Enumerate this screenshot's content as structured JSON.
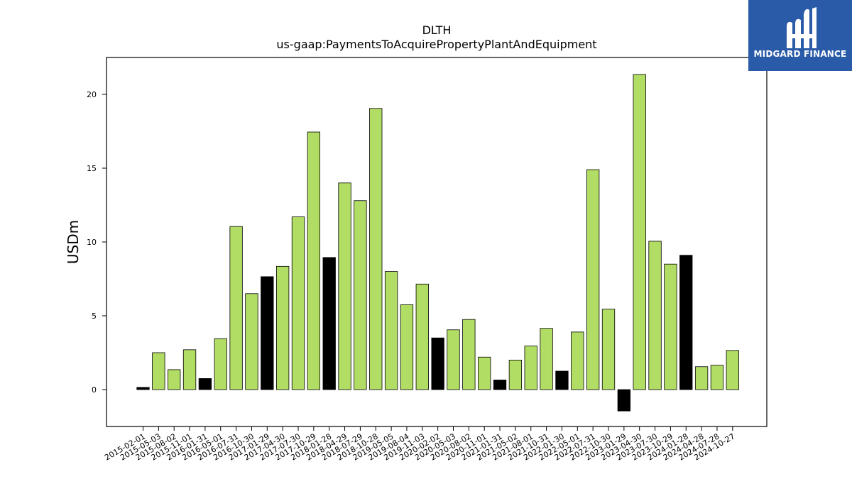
{
  "chart_data": {
    "type": "bar",
    "title": "DLTH",
    "subtitle": "us-gaap:PaymentsToAcquirePropertyPlantAndEquipment",
    "xlabel": "",
    "ylabel": "USDm",
    "ylim": [
      -2.5,
      22.5
    ],
    "yticks": [
      0,
      5,
      10,
      15,
      20
    ],
    "grid": false,
    "categories": [
      "2015-02-01",
      "2015-05-03",
      "2015-08-02",
      "2015-11-01",
      "2016-01-31",
      "2016-05-01",
      "2016-07-31",
      "2016-10-30",
      "2017-01-29",
      "2017-04-30",
      "2017-07-30",
      "2017-10-29",
      "2018-01-28",
      "2018-04-29",
      "2018-07-29",
      "2018-10-28",
      "2019-05-05",
      "2019-08-04",
      "2019-11-03",
      "2020-02-02",
      "2020-05-03",
      "2020-08-02",
      "2020-11-01",
      "2021-01-31",
      "2021-05-02",
      "2021-08-01",
      "2021-10-31",
      "2022-01-30",
      "2022-05-01",
      "2022-07-31",
      "2022-10-30",
      "2023-01-29",
      "2023-04-30",
      "2023-07-30",
      "2023-10-29",
      "2024-01-28",
      "2024-04-28",
      "2024-07-28",
      "2024-10-27"
    ],
    "values": [
      0.15,
      2.5,
      1.35,
      2.7,
      0.75,
      3.45,
      11.05,
      6.5,
      7.65,
      8.35,
      11.7,
      17.45,
      8.95,
      14.0,
      12.8,
      19.05,
      8.0,
      5.75,
      7.15,
      3.5,
      4.05,
      4.75,
      2.2,
      0.65,
      2.0,
      2.95,
      4.15,
      1.25,
      3.9,
      14.9,
      5.45,
      -1.45,
      21.35,
      10.05,
      8.5,
      9.1,
      1.55,
      1.65,
      2.65
    ],
    "highlight": [
      true,
      false,
      false,
      false,
      true,
      false,
      false,
      false,
      true,
      false,
      false,
      false,
      true,
      false,
      false,
      false,
      false,
      false,
      false,
      true,
      false,
      false,
      false,
      true,
      false,
      false,
      false,
      true,
      false,
      false,
      false,
      true,
      false,
      false,
      false,
      true,
      false,
      false,
      false
    ],
    "colors": {
      "bar": "#b2dd65",
      "highlight": "#000000",
      "edge": "#000000"
    }
  },
  "logo": {
    "text": "MIDGARD FINANCE",
    "background": "#2a5ba8"
  }
}
